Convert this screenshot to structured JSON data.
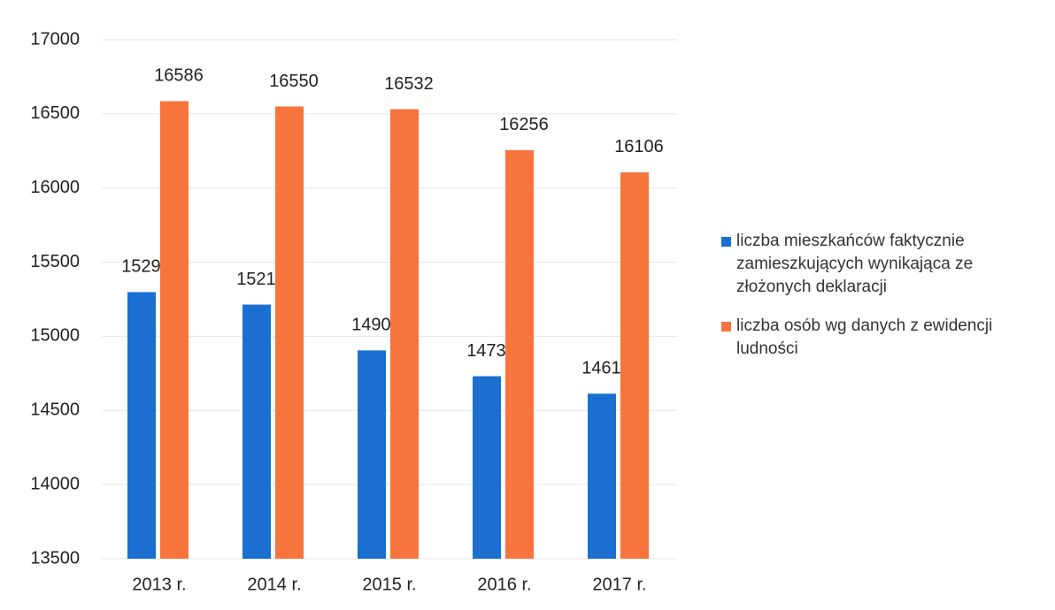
{
  "chart_data": {
    "type": "bar",
    "categories": [
      "2013 r.",
      "2014 r.",
      "2015 r.",
      "2016 r.",
      "2017 r."
    ],
    "series": [
      {
        "name": "liczba mieszkańców faktycznie zamieszkujących wynikająca ze złożonych deklaracji",
        "color": "#1a6fd1",
        "values": [
          15298,
          15214,
          14905,
          14731,
          14613
        ]
      },
      {
        "name": "liczba osób wg danych z ewidencji ludności",
        "color": "#f7743d",
        "values": [
          16586,
          16550,
          16532,
          16256,
          16106
        ]
      }
    ],
    "ylim": [
      13500,
      17000
    ],
    "yticks": [
      13500,
      14000,
      14500,
      15000,
      15500,
      16000,
      16500,
      17000
    ],
    "grid": true,
    "legend": "right"
  }
}
